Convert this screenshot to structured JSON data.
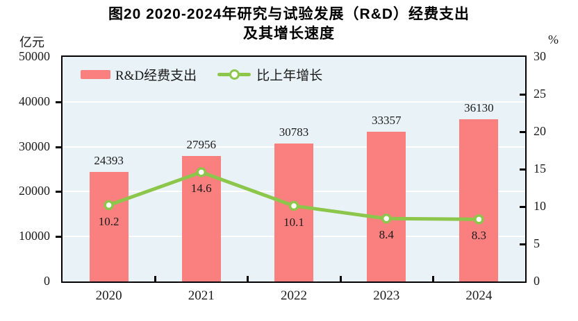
{
  "title": {
    "line1": "图20  2020-2024年研究与试验发展（R&D）经费支出",
    "line2": "及其增长速度"
  },
  "legend": [
    {
      "label": "R&D经费支出",
      "type": "bar"
    },
    {
      "label": "比上年增长",
      "type": "line"
    }
  ],
  "colors": {
    "bar": "#FA7F7F",
    "line": "#8CC64A",
    "marker_fill": "#FFFFFF",
    "plot_bg": "#E9F2F7",
    "gridline": "#FFFFFF",
    "axis": "#000000"
  },
  "chart_data": {
    "type": "bar+line",
    "categories": [
      "2020",
      "2021",
      "2022",
      "2023",
      "2024"
    ],
    "series": [
      {
        "name": "R&D经费支出",
        "type": "bar",
        "axis": "left",
        "values": [
          24393,
          27956,
          30783,
          33357,
          36130
        ],
        "color": "#FA7F7F"
      },
      {
        "name": "比上年增长",
        "type": "line",
        "axis": "right",
        "values": [
          10.2,
          14.6,
          10.1,
          8.4,
          8.3
        ],
        "color": "#8CC64A",
        "marker": "circle-white-fill-green-ring"
      }
    ],
    "left_axis": {
      "label": "亿元",
      "min": 0,
      "max": 50000,
      "tick_step": 10000,
      "ticks": [
        "0",
        "10000",
        "20000",
        "30000",
        "40000",
        "50000"
      ]
    },
    "right_axis": {
      "label": "%",
      "min": 0,
      "max": 30,
      "tick_step": 5,
      "ticks": [
        "0",
        "5",
        "10",
        "15",
        "20",
        "25",
        "30"
      ]
    },
    "grid": true,
    "legend_position": "top-left-inside",
    "title": "图20 2020-2024年研究与试验发展（R&D）经费支出及其增长速度"
  }
}
